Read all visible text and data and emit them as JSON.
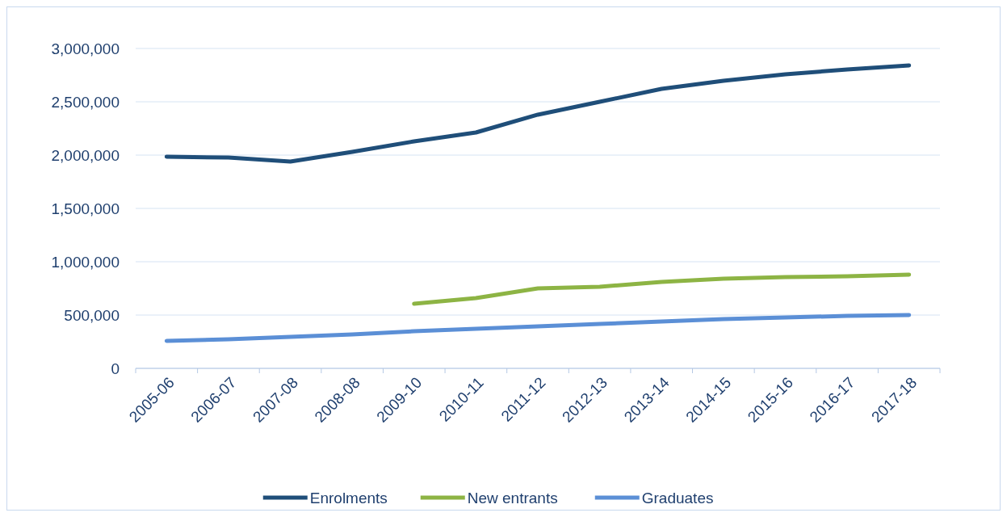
{
  "chart_data": {
    "type": "line",
    "categories": [
      "2005-06",
      "2006-07",
      "2007-08",
      "2008-08",
      "2009-10",
      "2010-11",
      "2011-12",
      "2012-13",
      "2013-14",
      "2014-15",
      "2015-16",
      "2016-17",
      "2017-18"
    ],
    "series": [
      {
        "name": "Enrolments",
        "color": "#1f4e79",
        "values": [
          1985000,
          1977000,
          1939000,
          2030000,
          2129000,
          2212000,
          2379000,
          2500000,
          2621000,
          2697000,
          2758000,
          2803000,
          2841000
        ]
      },
      {
        "name": "New entrants",
        "color": "#8db444",
        "values": [
          null,
          null,
          null,
          null,
          606000,
          659000,
          750000,
          765000,
          811000,
          841000,
          856000,
          864000,
          879000
        ]
      },
      {
        "name": "Graduates",
        "color": "#5b8fd6",
        "values": [
          258000,
          273000,
          295000,
          318000,
          348000,
          371000,
          394000,
          417000,
          439000,
          462000,
          477000,
          492000,
          500000
        ]
      }
    ],
    "ylim": [
      0,
      3000000
    ],
    "yticks": [
      {
        "value": 0,
        "label": "0"
      },
      {
        "value": 500000,
        "label": "500,000"
      },
      {
        "value": 1000000,
        "label": "1,000,000"
      },
      {
        "value": 1500000,
        "label": "1,500,000"
      },
      {
        "value": 2000000,
        "label": "2,000,000"
      },
      {
        "value": 2500000,
        "label": "2,500,000"
      },
      {
        "value": 3000000,
        "label": "3,000,000"
      }
    ],
    "grid": "y",
    "legend": "bottom",
    "marker": "none",
    "line_style": "solid"
  }
}
